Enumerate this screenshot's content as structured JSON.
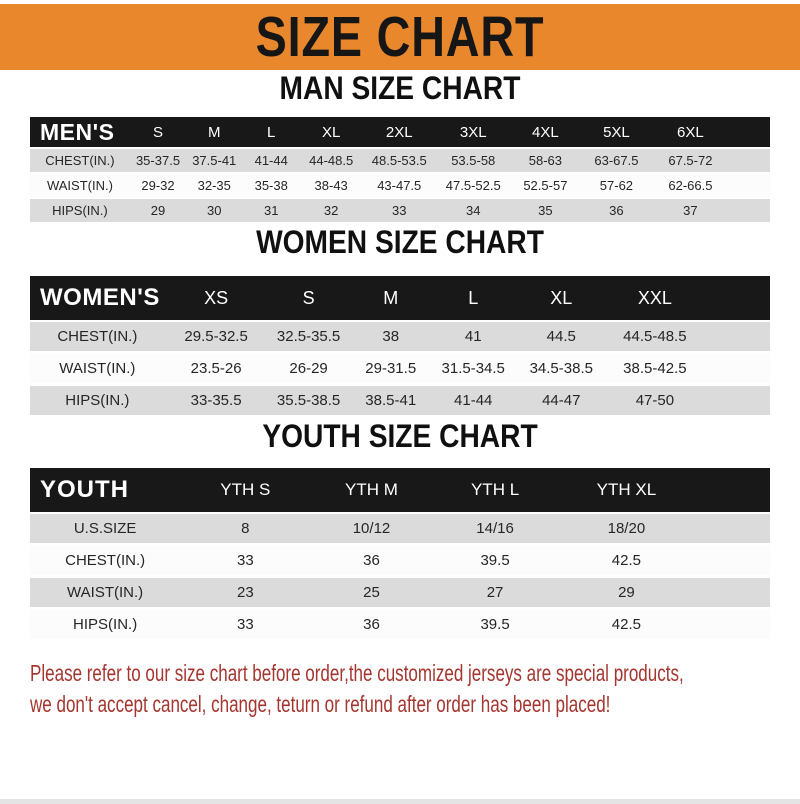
{
  "banner": {
    "title": "SIZE CHART"
  },
  "colors": {
    "banner_orange": "#E8872C",
    "header_bar_black": "#181818",
    "row_gray": "#DBDBDB",
    "row_white": "#FCFCFC",
    "disclaimer_red": "#A5362F"
  },
  "sections": [
    {
      "id": "men",
      "heading": "MAN SIZE CHART",
      "table": {
        "corner_label": "MEN'S",
        "columns": [
          "S",
          "M",
          "L",
          "XL",
          "2XL",
          "3XL",
          "4XL",
          "5XL",
          "6XL"
        ],
        "rows": [
          {
            "label": "CHEST(IN.)",
            "values": [
              "35-37.5",
              "37.5-41",
              "41-44",
              "44-48.5",
              "48.5-53.5",
              "53.5-58",
              "58-63",
              "63-67.5",
              "67.5-72"
            ]
          },
          {
            "label": "WAIST(IN.)",
            "values": [
              "29-32",
              "32-35",
              "35-38",
              "38-43",
              "43-47.5",
              "47.5-52.5",
              "52.5-57",
              "57-62",
              "62-66.5"
            ]
          },
          {
            "label": "HIPS(IN.)",
            "values": [
              "29",
              "30",
              "31",
              "32",
              "33",
              "34",
              "35",
              "36",
              "37"
            ]
          }
        ]
      }
    },
    {
      "id": "women",
      "heading": "WOMEN SIZE CHART",
      "table": {
        "corner_label": "WOMEN'S",
        "columns": [
          "XS",
          "S",
          "M",
          "L",
          "XL",
          "XXL"
        ],
        "rows": [
          {
            "label": "CHEST(IN.)",
            "values": [
              "29.5-32.5",
              "32.5-35.5",
              "38",
              "41",
              "44.5",
              "44.5-48.5"
            ]
          },
          {
            "label": "WAIST(IN.)",
            "values": [
              "23.5-26",
              "26-29",
              "29-31.5",
              "31.5-34.5",
              "34.5-38.5",
              "38.5-42.5"
            ]
          },
          {
            "label": "HIPS(IN.)",
            "values": [
              "33-35.5",
              "35.5-38.5",
              "38.5-41",
              "41-44",
              "44-47",
              "47-50"
            ]
          }
        ]
      }
    },
    {
      "id": "youth",
      "heading": "YOUTH SIZE CHART",
      "table": {
        "corner_label": "YOUTH",
        "columns": [
          "YTH S",
          "YTH M",
          "YTH L",
          "YTH XL"
        ],
        "rows": [
          {
            "label": "U.S.SIZE",
            "values": [
              "8",
              "10/12",
              "14/16",
              "18/20"
            ]
          },
          {
            "label": "CHEST(IN.)",
            "values": [
              "33",
              "36",
              "39.5",
              "42.5"
            ]
          },
          {
            "label": "WAIST(IN.)",
            "values": [
              "23",
              "25",
              "27",
              "29"
            ]
          },
          {
            "label": "HIPS(IN.)",
            "values": [
              "33",
              "36",
              "39.5",
              "42.5"
            ]
          }
        ]
      }
    }
  ],
  "footer": {
    "line1": "Please refer to our size chart before order,the customized jerseys are special products,",
    "line2": "we don't accept cancel, change, teturn or refund after order has been placed!"
  }
}
